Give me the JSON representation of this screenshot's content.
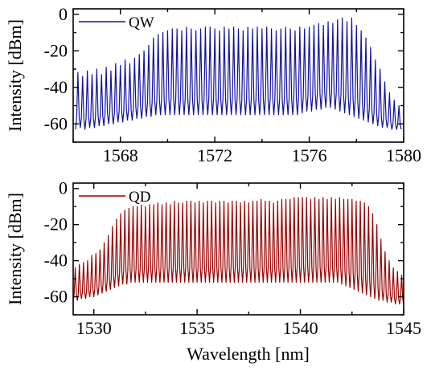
{
  "chart_data": [
    {
      "type": "line",
      "xlabel": "",
      "ylabel": "Intensity [dBm]",
      "xlim": [
        1566,
        1580
      ],
      "ylim": [
        -70,
        3
      ],
      "x_ticks": [
        1568,
        1572,
        1576,
        1580
      ],
      "y_ticks": [
        0,
        -20,
        -40,
        -60
      ],
      "x_tick_labels": [
        "1568",
        "1572",
        "1576",
        "1580"
      ],
      "y_tick_labels": [
        "0",
        "-20",
        "-40",
        "-60"
      ],
      "legend": {
        "placement": "top-left"
      },
      "series": [
        {
          "name": "QW",
          "color": "#1010a0",
          "comb": {
            "start": 1566.2,
            "spacing": 0.2,
            "count": 69,
            "peaks": [
              -32,
              -34,
              -31,
              -33,
              -30,
              -33,
              -29,
              -31,
              -27,
              -28,
              -25,
              -27,
              -24,
              -22,
              -20,
              -17,
              -13,
              -11,
              -10,
              -9,
              -8,
              -8,
              -9,
              -7,
              -8,
              -9,
              -8,
              -7,
              -7,
              -8,
              -9,
              -7,
              -8,
              -7,
              -8,
              -9,
              -7,
              -8,
              -7,
              -8,
              -7,
              -8,
              -9,
              -8,
              -7,
              -8,
              -9,
              -7,
              -8,
              -7,
              -6,
              -5,
              -6,
              -4,
              -5,
              -3,
              -2,
              -4,
              -2,
              -6,
              -9,
              -13,
              -18,
              -25,
              -30,
              -37,
              -43,
              -47,
              -50
            ],
            "valleys": [
              -63,
              -62,
              -63,
              -62,
              -62,
              -61,
              -61,
              -60,
              -60,
              -59,
              -59,
              -58,
              -58,
              -57,
              -57,
              -56,
              -56,
              -55,
              -55,
              -55,
              -55,
              -55,
              -55,
              -55,
              -55,
              -55,
              -55,
              -55,
              -55,
              -55,
              -55,
              -55,
              -55,
              -55,
              -55,
              -55,
              -55,
              -55,
              -55,
              -55,
              -55,
              -55,
              -55,
              -55,
              -55,
              -55,
              -55,
              -55,
              -54,
              -53,
              -53,
              -52,
              -52,
              -51,
              -51,
              -52,
              -53,
              -54,
              -55,
              -56,
              -57,
              -58,
              -59,
              -60,
              -61,
              -62,
              -62,
              -63,
              -63
            ]
          }
        }
      ]
    },
    {
      "type": "line",
      "xlabel": "Wavelength [nm]",
      "ylabel": "Intensity [dBm]",
      "xlim": [
        1529,
        1545
      ],
      "ylim": [
        -70,
        3
      ],
      "x_ticks": [
        1530,
        1535,
        1540,
        1545
      ],
      "y_ticks": [
        0,
        -20,
        -40,
        -60
      ],
      "x_tick_labels": [
        "1530",
        "1535",
        "1540",
        "1545"
      ],
      "y_tick_labels": [
        "0",
        "-20",
        "-40",
        "-60"
      ],
      "legend": {
        "placement": "top-left"
      },
      "series": [
        {
          "name": "QD",
          "color": "#990000",
          "comb": {
            "start": 1529.1,
            "spacing": 0.2,
            "count": 80,
            "peaks": [
              -44,
              -42,
              -41,
              -40,
              -37,
              -36,
              -34,
              -30,
              -26,
              -21,
              -17,
              -14,
              -12,
              -11,
              -10,
              -10,
              -9,
              -10,
              -9,
              -9,
              -8,
              -9,
              -8,
              -9,
              -7,
              -8,
              -8,
              -7,
              -7,
              -8,
              -7,
              -8,
              -7,
              -7,
              -8,
              -7,
              -7,
              -8,
              -7,
              -7,
              -8,
              -7,
              -8,
              -7,
              -7,
              -6,
              -7,
              -7,
              -8,
              -7,
              -6,
              -6,
              -6,
              -5,
              -5,
              -5,
              -5,
              -6,
              -5,
              -6,
              -5,
              -6,
              -5,
              -6,
              -5,
              -6,
              -6,
              -6,
              -7,
              -7,
              -8,
              -10,
              -14,
              -20,
              -28,
              -35,
              -40,
              -44,
              -46,
              -48
            ],
            "valleys": [
              -62,
              -62,
              -61,
              -61,
              -60,
              -60,
              -59,
              -58,
              -57,
              -56,
              -55,
              -54,
              -53,
              -53,
              -52,
              -52,
              -52,
              -52,
              -52,
              -52,
              -52,
              -52,
              -52,
              -52,
              -52,
              -52,
              -52,
              -52,
              -52,
              -52,
              -52,
              -52,
              -52,
              -52,
              -52,
              -52,
              -52,
              -52,
              -52,
              -52,
              -52,
              -52,
              -52,
              -52,
              -52,
              -52,
              -52,
              -52,
              -52,
              -52,
              -52,
              -52,
              -52,
              -52,
              -52,
              -52,
              -52,
              -52,
              -52,
              -52,
              -52,
              -52,
              -52,
              -52,
              -52,
              -53,
              -54,
              -55,
              -56,
              -57,
              -58,
              -59,
              -60,
              -61,
              -62,
              -62,
              -63,
              -63,
              -64,
              -64
            ]
          }
        }
      ]
    }
  ]
}
